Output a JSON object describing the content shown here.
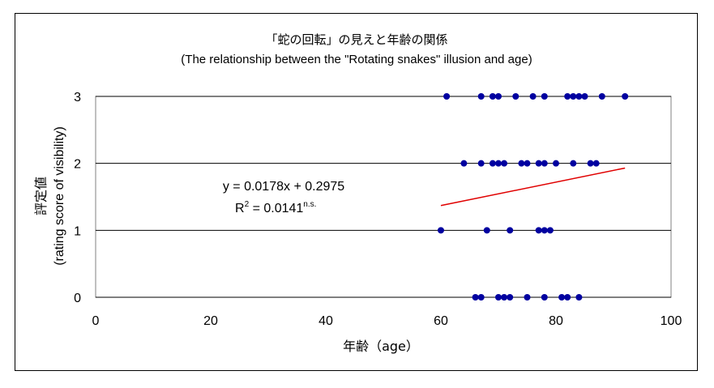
{
  "chart_data": {
    "type": "scatter",
    "title": "「蛇の回転」の見えと年齢の関係",
    "subtitle": "(The relationship between the \"Rotating snakes\" illusion and age)",
    "xlabel": "年齢（age）",
    "ylabel_ja": "評定値",
    "ylabel_en": "(rating score of visibility)",
    "xlim": [
      0,
      100
    ],
    "ylim": [
      0,
      3
    ],
    "xticks": [
      "0",
      "20",
      "40",
      "60",
      "80",
      "100"
    ],
    "yticks": [
      "0",
      "1",
      "2",
      "3"
    ],
    "grid": "horizontal",
    "marker_color": "#0000a0",
    "trendline_color": "#e00000",
    "points": [
      [
        61,
        3
      ],
      [
        67,
        3
      ],
      [
        69,
        3
      ],
      [
        70,
        3
      ],
      [
        73,
        3
      ],
      [
        76,
        3
      ],
      [
        78,
        3
      ],
      [
        82,
        3
      ],
      [
        83,
        3
      ],
      [
        84,
        3
      ],
      [
        85,
        3
      ],
      [
        88,
        3
      ],
      [
        92,
        3
      ],
      [
        64,
        2
      ],
      [
        67,
        2
      ],
      [
        69,
        2
      ],
      [
        70,
        2
      ],
      [
        71,
        2
      ],
      [
        74,
        2
      ],
      [
        75,
        2
      ],
      [
        77,
        2
      ],
      [
        78,
        2
      ],
      [
        80,
        2
      ],
      [
        83,
        2
      ],
      [
        86,
        2
      ],
      [
        87,
        2
      ],
      [
        60,
        1
      ],
      [
        68,
        1
      ],
      [
        72,
        1
      ],
      [
        77,
        1
      ],
      [
        78,
        1
      ],
      [
        79,
        1
      ],
      [
        66,
        0
      ],
      [
        67,
        0
      ],
      [
        70,
        0
      ],
      [
        71,
        0
      ],
      [
        72,
        0
      ],
      [
        75,
        0
      ],
      [
        78,
        0
      ],
      [
        81,
        0
      ],
      [
        82,
        0
      ],
      [
        84,
        0
      ]
    ],
    "trendline": {
      "slope": 0.0178,
      "intercept": 0.2975,
      "x_range": [
        60,
        92
      ]
    },
    "equation": "y = 0.0178x + 0.2975",
    "r2_prefix": "R",
    "r2_sup": "2",
    "r2_value": " = 0.0141",
    "r2_note": "n.s."
  }
}
